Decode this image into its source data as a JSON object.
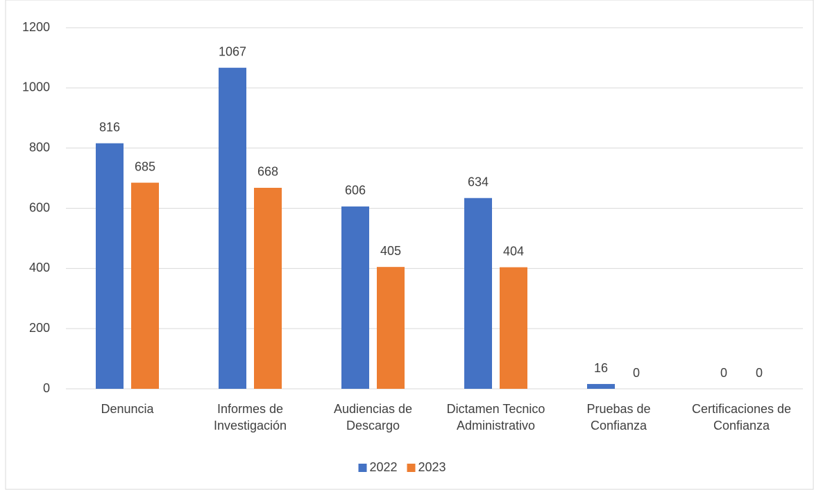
{
  "chart_data": {
    "type": "bar",
    "categories": [
      "Denuncia",
      "Informes de Investigación",
      "Audiencias de Descargo",
      "Dictamen Tecnico Administrativo",
      "Pruebas de Confianza",
      "Certificaciones de Confianza"
    ],
    "series": [
      {
        "name": "2022",
        "color": "#4472c4",
        "values": [
          816,
          1067,
          606,
          634,
          16,
          0
        ]
      },
      {
        "name": "2023",
        "color": "#ed7d31",
        "values": [
          685,
          668,
          405,
          404,
          0,
          0
        ]
      }
    ],
    "ylim": [
      0,
      1200
    ],
    "yticks": [
      0,
      200,
      400,
      600,
      800,
      1000,
      1200
    ],
    "grid": true,
    "legend": "bottom"
  }
}
